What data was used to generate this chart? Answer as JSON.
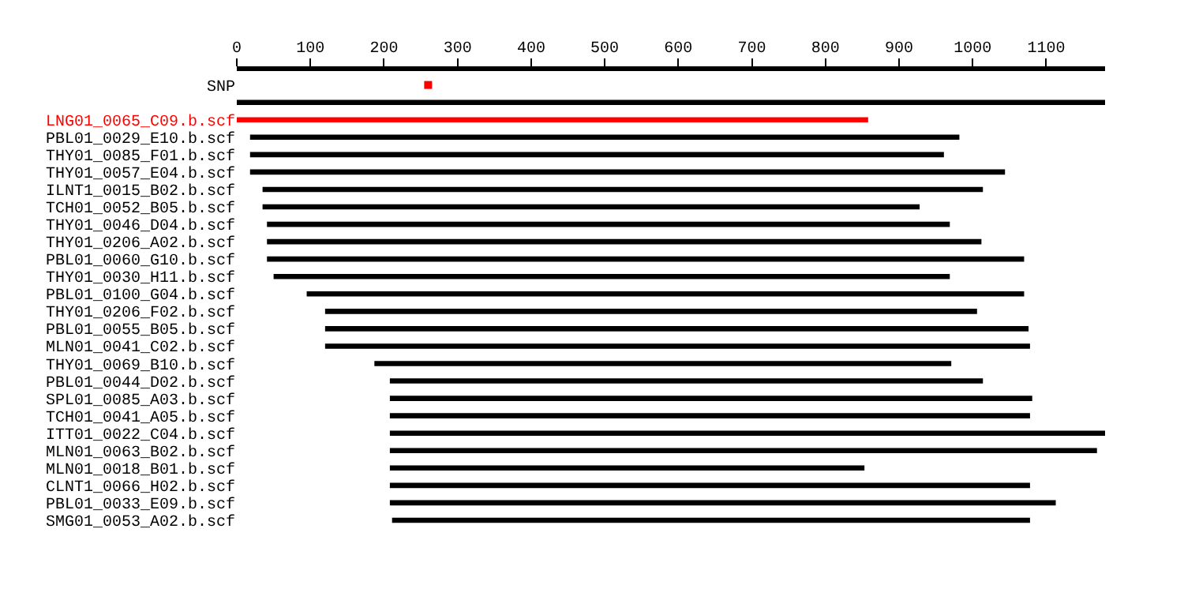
{
  "chart_data": {
    "type": "bar",
    "orientation": "horizontal",
    "xlim": [
      0,
      1180
    ],
    "xticks": [
      0,
      100,
      200,
      300,
      400,
      500,
      600,
      700,
      800,
      900,
      1000,
      1100
    ],
    "categories": [
      "SNP",
      null,
      "LNG01_0065_C09.b.scf",
      "PBL01_0029_E10.b.scf",
      "THY01_0085_F01.b.scf",
      "THY01_0057_E04.b.scf",
      "ILNT1_0015_B02.b.scf",
      "TCH01_0052_B05.b.scf",
      "THY01_0046_D04.b.scf",
      "THY01_0206_A02.b.scf",
      "PBL01_0060_G10.b.scf",
      "THY01_0030_H11.b.scf",
      "PBL01_0100_G04.b.scf",
      "THY01_0206_F02.b.scf",
      "PBL01_0055_B05.b.scf",
      "MLN01_0041_C02.b.scf",
      "THY01_0069_B10.b.scf",
      "PBL01_0044_D02.b.scf",
      "SPL01_0085_A03.b.scf",
      "TCH01_0041_A05.b.scf",
      "ITT01_0022_C04.b.scf",
      "MLN01_0063_B02.b.scf",
      "MLN01_0018_B01.b.scf",
      "CLNT1_0066_H02.b.scf",
      "PBL01_0033_E09.b.scf",
      "SMG01_0053_A02.b.scf"
    ],
    "series": [
      {
        "colors": [
          "#000000",
          "#000000",
          "#ff0000",
          "#000000",
          "#000000",
          "#000000",
          "#000000",
          "#000000",
          "#000000",
          "#000000",
          "#000000",
          "#000000",
          "#000000",
          "#000000",
          "#000000",
          "#000000",
          "#000000",
          "#000000",
          "#000000",
          "#000000",
          "#000000",
          "#000000",
          "#000000",
          "#000000",
          "#000000",
          "#000000"
        ],
        "base": [
          null,
          0,
          0,
          18,
          18,
          18,
          35,
          35,
          41,
          41,
          41,
          50,
          95,
          120,
          120,
          120,
          187,
          208,
          208,
          208,
          208,
          208,
          208,
          208,
          208,
          211
        ],
        "values": [
          null,
          1180,
          858,
          964,
          943,
          1026,
          979,
          893,
          928,
          971,
          1029,
          919,
          975,
          886,
          956,
          958,
          784,
          806,
          873,
          870,
          972,
          961,
          645,
          870,
          905,
          867
        ]
      },
      {
        "type": "scatter",
        "color": "#ff0000",
        "values": [
          260,
          null,
          null,
          null,
          null,
          null,
          null,
          null,
          null,
          null,
          null,
          null,
          null,
          null,
          null,
          null,
          null,
          null,
          null,
          null,
          null,
          null,
          null,
          null,
          null,
          null
        ]
      }
    ]
  }
}
